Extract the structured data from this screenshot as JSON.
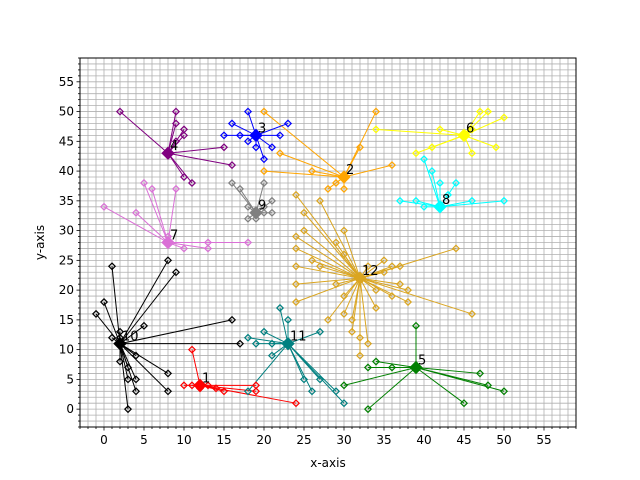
{
  "chart_data": {
    "type": "scatter",
    "title": "",
    "xlabel": "x-axis",
    "ylabel": "y-axis",
    "xlim": [
      -3,
      59
    ],
    "ylim": [
      -3,
      59
    ],
    "xticks": [
      0,
      5,
      10,
      15,
      20,
      25,
      30,
      35,
      40,
      45,
      50,
      55
    ],
    "yticks": [
      0,
      5,
      10,
      15,
      20,
      25,
      30,
      35,
      40,
      45,
      50,
      55
    ],
    "grid": "on (1-unit grid)",
    "legend": "none",
    "clusters": [
      {
        "label": "1",
        "color": "#ff0000",
        "center": [
          12,
          4
        ],
        "points": [
          [
            10,
            4
          ],
          [
            11,
            4
          ],
          [
            12,
            3.5
          ],
          [
            13,
            4
          ],
          [
            14,
            3.5
          ],
          [
            15,
            3
          ],
          [
            19,
            4
          ],
          [
            24,
            1
          ],
          [
            11,
            10
          ],
          [
            19,
            3
          ]
        ]
      },
      {
        "label": "2",
        "color": "#ffa500",
        "center": [
          30,
          39
        ],
        "points": [
          [
            20,
            50
          ],
          [
            22,
            43
          ],
          [
            26,
            40
          ],
          [
            28,
            37
          ],
          [
            29,
            38
          ],
          [
            30,
            37
          ],
          [
            32,
            44
          ],
          [
            34,
            50
          ],
          [
            36,
            41
          ],
          [
            20,
            40
          ]
        ]
      },
      {
        "label": "3",
        "color": "#0000ff",
        "center": [
          19,
          46
        ],
        "points": [
          [
            16,
            48
          ],
          [
            17,
            46
          ],
          [
            18,
            45
          ],
          [
            19,
            44
          ],
          [
            20,
            42
          ],
          [
            21,
            44
          ],
          [
            22,
            46
          ],
          [
            23,
            48
          ],
          [
            18,
            50
          ],
          [
            15,
            46
          ]
        ]
      },
      {
        "label": "4",
        "color": "#800080",
        "center": [
          8,
          43
        ],
        "points": [
          [
            2,
            50
          ],
          [
            9,
            50
          ],
          [
            9,
            48
          ],
          [
            10,
            47
          ],
          [
            10,
            46
          ],
          [
            11,
            38
          ],
          [
            10,
            39
          ],
          [
            15,
            44
          ],
          [
            16,
            41
          ],
          [
            9,
            45
          ]
        ]
      },
      {
        "label": "5",
        "color": "#008000",
        "center": [
          39,
          7
        ],
        "points": [
          [
            33,
            0
          ],
          [
            33,
            7
          ],
          [
            34,
            8
          ],
          [
            39,
            14
          ],
          [
            45,
            1
          ],
          [
            47,
            6
          ],
          [
            50,
            3
          ],
          [
            48,
            4
          ],
          [
            30,
            4
          ],
          [
            36,
            7
          ]
        ]
      },
      {
        "label": "6",
        "color": "#ffff00",
        "center": [
          45,
          46
        ],
        "points": [
          [
            34,
            47
          ],
          [
            39,
            43
          ],
          [
            41,
            44
          ],
          [
            42,
            47
          ],
          [
            46,
            43
          ],
          [
            47,
            50
          ],
          [
            48,
            50
          ],
          [
            49,
            44
          ],
          [
            50,
            49
          ],
          [
            46,
            47
          ]
        ]
      },
      {
        "label": "7",
        "color": "#da70d6",
        "center": [
          8,
          28
        ],
        "points": [
          [
            0,
            34
          ],
          [
            4,
            33
          ],
          [
            5,
            38
          ],
          [
            6,
            37
          ],
          [
            8,
            29
          ],
          [
            9,
            37
          ],
          [
            13,
            28
          ],
          [
            13,
            27
          ],
          [
            18,
            28
          ],
          [
            10,
            27
          ]
        ]
      },
      {
        "label": "8",
        "color": "#00ffff",
        "center": [
          42,
          34
        ],
        "points": [
          [
            37,
            35
          ],
          [
            39,
            35
          ],
          [
            40,
            42
          ],
          [
            41,
            40
          ],
          [
            42,
            38
          ],
          [
            44,
            38
          ],
          [
            46,
            35
          ],
          [
            50,
            35
          ],
          [
            43,
            36
          ],
          [
            40,
            34
          ]
        ]
      },
      {
        "label": "9",
        "color": "#808080",
        "center": [
          19,
          33
        ],
        "points": [
          [
            16,
            38
          ],
          [
            17,
            37
          ],
          [
            18,
            34
          ],
          [
            19,
            32
          ],
          [
            20,
            33
          ],
          [
            20,
            38
          ],
          [
            21,
            35
          ],
          [
            20,
            34
          ],
          [
            18,
            32
          ],
          [
            21,
            33
          ]
        ]
      },
      {
        "label": "10",
        "color": "#000000",
        "center": [
          2,
          11
        ],
        "points": [
          [
            -1,
            16
          ],
          [
            0,
            18
          ],
          [
            1,
            24
          ],
          [
            2,
            12
          ],
          [
            3,
            0
          ],
          [
            4,
            3
          ],
          [
            4,
            5
          ],
          [
            5,
            14
          ],
          [
            8,
            3
          ],
          [
            8,
            6
          ],
          [
            9,
            23
          ],
          [
            8,
            25
          ],
          [
            16,
            15
          ],
          [
            17,
            11
          ],
          [
            2,
            8
          ],
          [
            3,
            7
          ],
          [
            1,
            12
          ],
          [
            4,
            9
          ],
          [
            2,
            13
          ],
          [
            3,
            5
          ]
        ]
      },
      {
        "label": "11",
        "color": "#008080",
        "center": [
          23,
          11
        ],
        "points": [
          [
            18,
            3
          ],
          [
            19,
            11
          ],
          [
            20,
            13
          ],
          [
            21,
            11
          ],
          [
            22,
            17
          ],
          [
            23,
            15
          ],
          [
            25,
            5
          ],
          [
            26,
            3
          ],
          [
            27,
            13
          ],
          [
            27,
            5
          ],
          [
            29,
            3
          ],
          [
            30,
            1
          ],
          [
            18,
            12
          ],
          [
            21,
            9
          ]
        ]
      },
      {
        "label": "12",
        "color": "#daa520",
        "center": [
          32,
          22
        ],
        "points": [
          [
            24,
            29
          ],
          [
            24,
            27
          ],
          [
            24,
            24
          ],
          [
            24,
            21
          ],
          [
            24,
            18
          ],
          [
            24,
            36
          ],
          [
            25,
            30
          ],
          [
            25,
            33
          ],
          [
            26,
            25
          ],
          [
            27,
            35
          ],
          [
            27,
            24
          ],
          [
            28,
            15
          ],
          [
            29,
            28
          ],
          [
            29,
            21
          ],
          [
            30,
            16
          ],
          [
            30,
            26
          ],
          [
            30,
            30
          ],
          [
            31,
            13
          ],
          [
            31,
            15
          ],
          [
            32,
            12
          ],
          [
            32,
            9
          ],
          [
            33,
            11
          ],
          [
            34,
            17
          ],
          [
            34,
            20
          ],
          [
            35,
            23
          ],
          [
            35,
            25
          ],
          [
            36,
            24
          ],
          [
            37,
            21
          ],
          [
            38,
            20
          ],
          [
            38,
            18
          ],
          [
            44,
            27
          ],
          [
            46,
            16
          ],
          [
            30,
            19
          ],
          [
            36,
            19
          ],
          [
            33,
            24
          ],
          [
            37,
            24
          ]
        ]
      }
    ]
  }
}
